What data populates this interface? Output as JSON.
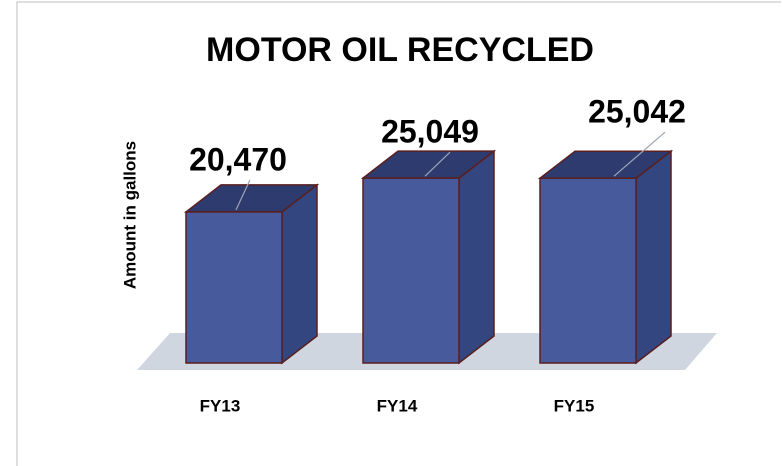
{
  "chart_data": {
    "type": "bar3d",
    "title": "MOTOR OIL RECYCLED",
    "y_label": "Amount in gallons",
    "categories": [
      "FY13",
      "FY14",
      "FY15"
    ],
    "values": [
      20470,
      25049,
      25042
    ],
    "value_labels": [
      "20,470",
      "25,049",
      "25,042"
    ],
    "color": "#475b9c",
    "ylim": [
      0,
      30000
    ]
  }
}
